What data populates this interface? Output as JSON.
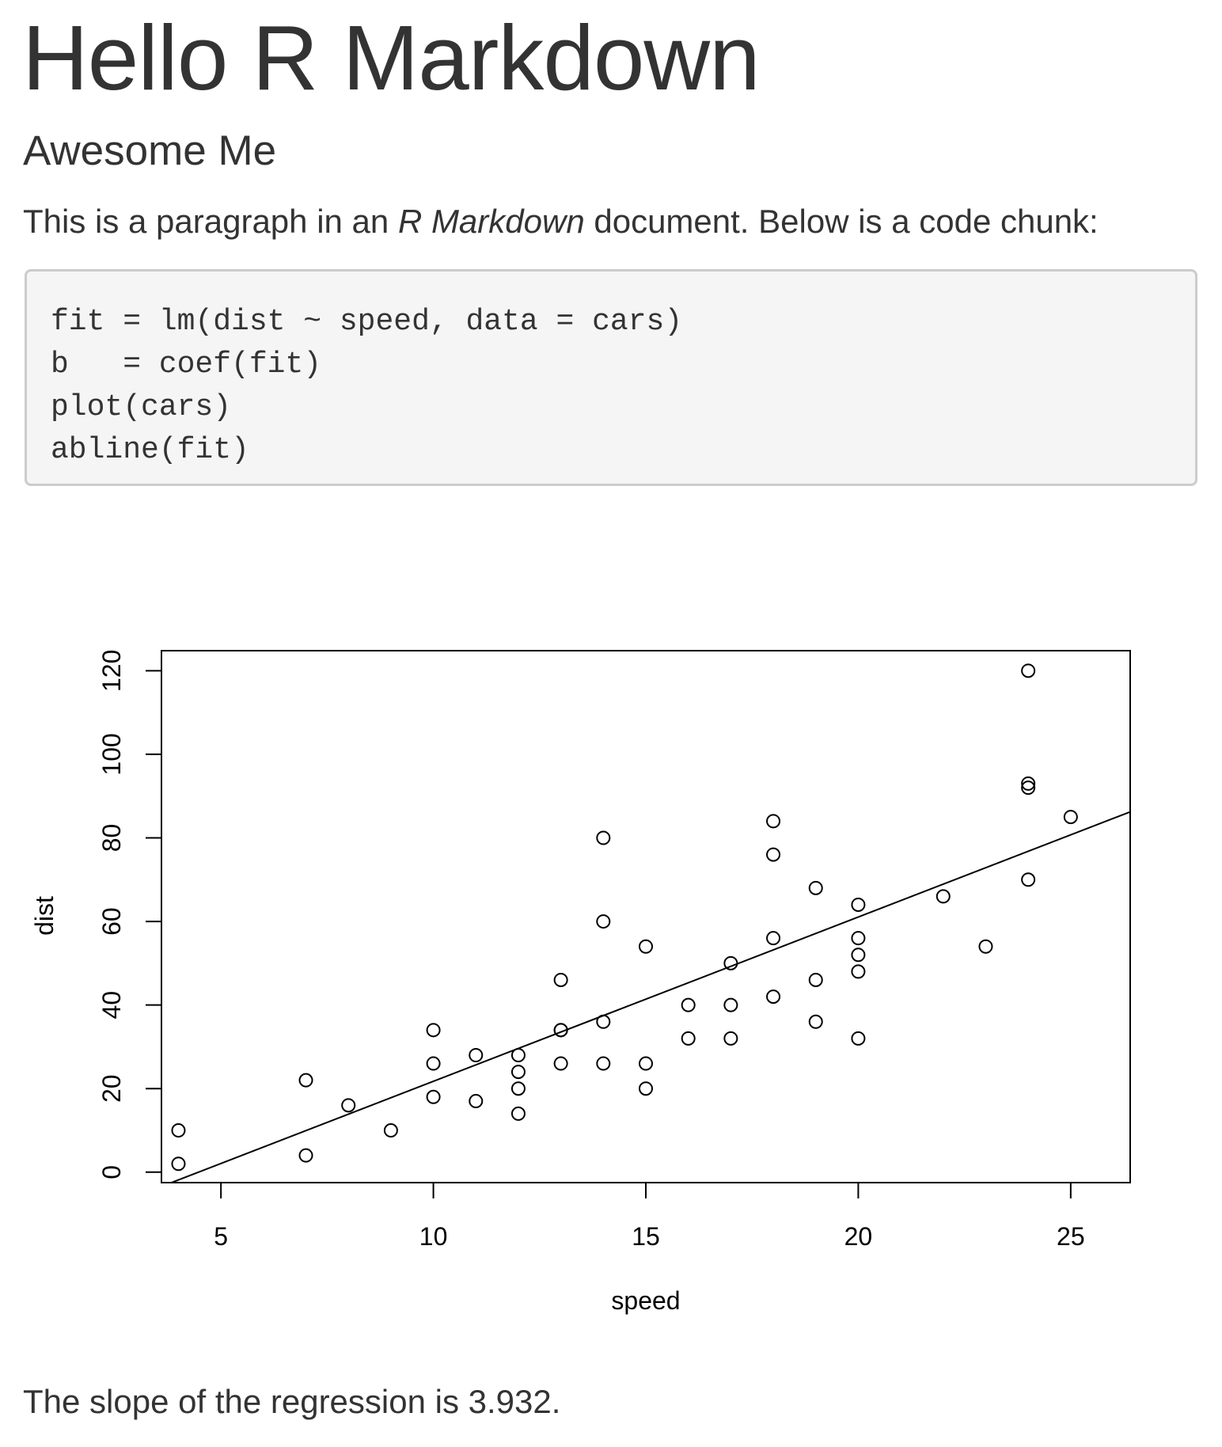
{
  "document": {
    "title": "Hello R Markdown",
    "subtitle": "Awesome Me",
    "intro": {
      "before": "This is a paragraph in an ",
      "emphasis": "R Markdown",
      "after": " document. Below is a code chunk:"
    },
    "code_lines": [
      "fit = lm(dist ~ speed, data = cars)",
      "b   = coef(fit)",
      "plot(cars)",
      "abline(fit)"
    ],
    "result_text": "The slope of the regression is 3.932."
  },
  "chart_data": {
    "type": "scatter",
    "xlabel": "speed",
    "ylabel": "dist",
    "xlim": [
      3.6,
      26.4
    ],
    "ylim": [
      -2.5,
      124.8
    ],
    "xticks": [
      5,
      10,
      15,
      20,
      25
    ],
    "yticks": [
      0,
      20,
      40,
      60,
      80,
      100,
      120
    ],
    "grid": false,
    "legend": "none",
    "marker": "open-circle",
    "points": [
      [
        4,
        2
      ],
      [
        4,
        10
      ],
      [
        7,
        4
      ],
      [
        7,
        22
      ],
      [
        8,
        16
      ],
      [
        9,
        10
      ],
      [
        10,
        18
      ],
      [
        10,
        26
      ],
      [
        10,
        34
      ],
      [
        11,
        17
      ],
      [
        11,
        28
      ],
      [
        12,
        14
      ],
      [
        12,
        20
      ],
      [
        12,
        24
      ],
      [
        12,
        28
      ],
      [
        13,
        26
      ],
      [
        13,
        34
      ],
      [
        13,
        34
      ],
      [
        13,
        46
      ],
      [
        14,
        26
      ],
      [
        14,
        36
      ],
      [
        14,
        60
      ],
      [
        14,
        80
      ],
      [
        15,
        20
      ],
      [
        15,
        26
      ],
      [
        15,
        54
      ],
      [
        16,
        32
      ],
      [
        16,
        40
      ],
      [
        17,
        32
      ],
      [
        17,
        40
      ],
      [
        17,
        50
      ],
      [
        18,
        42
      ],
      [
        18,
        56
      ],
      [
        18,
        76
      ],
      [
        18,
        84
      ],
      [
        19,
        36
      ],
      [
        19,
        46
      ],
      [
        19,
        68
      ],
      [
        20,
        32
      ],
      [
        20,
        48
      ],
      [
        20,
        52
      ],
      [
        20,
        56
      ],
      [
        20,
        64
      ],
      [
        22,
        66
      ],
      [
        23,
        54
      ],
      [
        24,
        70
      ],
      [
        24,
        92
      ],
      [
        24,
        93
      ],
      [
        24,
        120
      ],
      [
        25,
        85
      ]
    ],
    "regression_line": {
      "intercept": -17.579,
      "slope": 3.932
    }
  }
}
